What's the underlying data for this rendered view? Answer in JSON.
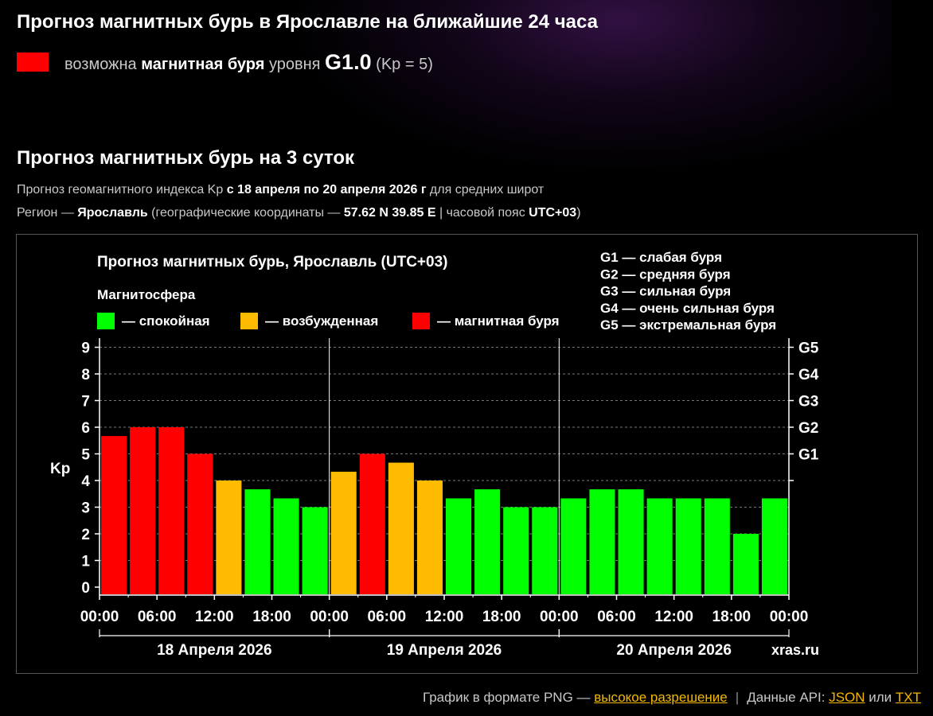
{
  "header": {
    "title": "Прогноз магнитных бурь в Ярославле на ближайшие 24 часа",
    "forecast_prefix": "возможна",
    "forecast_bold": "магнитная буря",
    "forecast_mid": "уровня",
    "forecast_level": "G1.0",
    "forecast_kp": "(Kp = 5)",
    "forecast_color": "#ff0000"
  },
  "section": {
    "title": "Прогноз магнитных бурь на 3 суток",
    "line1_pre": "Прогноз геомагнитного индекса Kp ",
    "line1_bold": "с 18 апреля по 20 апреля 2026 г",
    "line1_post": " для средних широт",
    "line2_pre": "Регион — ",
    "line2_region": "Ярославль",
    "line2_mid": " (географические координаты — ",
    "line2_coords": "57.62 N 39.85 E",
    "line2_mid2": " | часовой пояс ",
    "line2_tz": "UTC+03",
    "line2_post": ")"
  },
  "chart_data": {
    "type": "bar",
    "title": "Прогноз магнитных бурь, Ярославль (UTC+03)",
    "legend_title": "Магнитосфера",
    "legend": [
      {
        "label": "— спокойная",
        "color": "#00ff00"
      },
      {
        "label": "— возбужденная",
        "color": "#ffbb00"
      },
      {
        "label": "— магнитная буря",
        "color": "#ff0000"
      }
    ],
    "storm_levels": [
      "G1 — слабая буря",
      "G2 — средняя буря",
      "G3 — сильная буря",
      "G4 — очень сильная буря",
      "G5 — экстремальная буря"
    ],
    "ylabel": "Kp",
    "ylim": [
      0,
      9
    ],
    "yticks": [
      "0",
      "1",
      "2",
      "3",
      "4",
      "5",
      "6",
      "7",
      "8",
      "9"
    ],
    "right_ticks": [
      {
        "value": 5,
        "label": "G1"
      },
      {
        "value": 6,
        "label": "G2"
      },
      {
        "value": 7,
        "label": "G3"
      },
      {
        "value": 8,
        "label": "G4"
      },
      {
        "value": 9,
        "label": "G5"
      }
    ],
    "grid": true,
    "days": [
      "18 Апреля 2026",
      "19 Апреля 2026",
      "20 Апреля 2026"
    ],
    "xtick_labels": [
      "00:00",
      "06:00",
      "12:00",
      "18:00",
      "00:00",
      "06:00",
      "12:00",
      "18:00",
      "00:00",
      "06:00",
      "12:00",
      "18:00",
      "00:00"
    ],
    "series": [
      {
        "values": [
          5.67,
          6.0,
          6.0,
          5.0,
          4.0,
          3.67,
          3.33,
          3.0,
          4.33,
          5.0,
          4.67,
          4.0,
          3.33,
          3.67,
          3.0,
          3.0,
          3.33,
          3.67,
          3.67,
          3.33,
          3.33,
          3.33,
          2.0,
          3.33
        ],
        "colors": [
          "#ff0000",
          "#ff0000",
          "#ff0000",
          "#ff0000",
          "#ffbb00",
          "#00ff00",
          "#00ff00",
          "#00ff00",
          "#ffbb00",
          "#ff0000",
          "#ffbb00",
          "#ffbb00",
          "#00ff00",
          "#00ff00",
          "#00ff00",
          "#00ff00",
          "#00ff00",
          "#00ff00",
          "#00ff00",
          "#00ff00",
          "#00ff00",
          "#00ff00",
          "#00ff00",
          "#00ff00"
        ]
      }
    ],
    "watermark": "xras.ru"
  },
  "footer": {
    "png_text": "График в формате PNG — ",
    "png_link": "высокое разрешение",
    "api_text": "Данные API: ",
    "json_link": "JSON",
    "or_text": " или ",
    "txt_link": "TXT"
  }
}
